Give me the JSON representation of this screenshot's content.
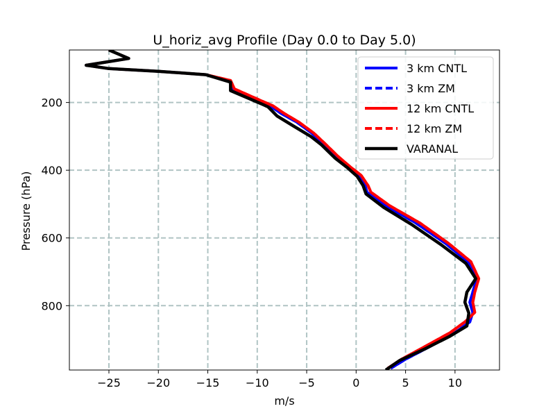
{
  "chart_data": {
    "type": "line",
    "title": "U_horiz_avg Profile (Day 0.0 to Day 5.0)",
    "xlabel": "m/s",
    "ylabel": "Pressure (hPa)",
    "xlim": [
      -29,
      14.5
    ],
    "ylim": [
      990,
      45
    ],
    "y_inverted": true,
    "grid": true,
    "grid_color": "#b0c4c4",
    "legend_position": "upper right",
    "xticks": [
      -25,
      -20,
      -15,
      -10,
      -5,
      0,
      5,
      10
    ],
    "xtick_labels": [
      "−25",
      "−20",
      "−15",
      "−10",
      "−5",
      "0",
      "5",
      "10"
    ],
    "yticks": [
      200,
      400,
      600,
      800
    ],
    "ytick_labels": [
      "200",
      "400",
      "600",
      "800"
    ],
    "series": [
      {
        "name": "3 km CNTL",
        "color": "#0000ff",
        "style": "solid",
        "width": 4,
        "points": [
          [
            -25,
            45
          ],
          [
            -23,
            70
          ],
          [
            -27.3,
            90
          ],
          [
            -25,
            100
          ],
          [
            -20,
            108
          ],
          [
            -15.2,
            118
          ],
          [
            -12.7,
            138
          ],
          [
            -12.5,
            162
          ],
          [
            -9.5,
            200
          ],
          [
            -8.7,
            210
          ],
          [
            -7.6,
            232
          ],
          [
            -6,
            258
          ],
          [
            -4.5,
            290
          ],
          [
            -3.4,
            320
          ],
          [
            -2,
            360
          ],
          [
            -0.8,
            390
          ],
          [
            0.3,
            415
          ],
          [
            0.9,
            445
          ],
          [
            1.1,
            465
          ],
          [
            3,
            505
          ],
          [
            6,
            555
          ],
          [
            9,
            615
          ],
          [
            11.3,
            670
          ],
          [
            12.2,
            720
          ],
          [
            11.8,
            760
          ],
          [
            11.5,
            790
          ],
          [
            11.8,
            820
          ],
          [
            11.5,
            848
          ],
          [
            10,
            880
          ],
          [
            7.5,
            920
          ],
          [
            5,
            958
          ],
          [
            3.5,
            985
          ]
        ]
      },
      {
        "name": "3 km ZM",
        "color": "#0000ff",
        "style": "dashed",
        "width": 4,
        "points": [
          [
            -25,
            45
          ],
          [
            -23,
            70
          ],
          [
            -27.3,
            90
          ],
          [
            -25,
            100
          ],
          [
            -20,
            108
          ],
          [
            -15.2,
            118
          ],
          [
            -12.7,
            138
          ],
          [
            -12.5,
            162
          ],
          [
            -9.5,
            200
          ],
          [
            -8.7,
            210
          ],
          [
            -7.6,
            232
          ],
          [
            -6,
            258
          ],
          [
            -4.5,
            290
          ],
          [
            -3.4,
            320
          ],
          [
            -2,
            360
          ],
          [
            -0.8,
            390
          ],
          [
            0.3,
            415
          ],
          [
            0.9,
            445
          ],
          [
            1.1,
            465
          ],
          [
            3,
            505
          ],
          [
            6,
            555
          ],
          [
            9,
            615
          ],
          [
            11.3,
            670
          ],
          [
            12.2,
            720
          ],
          [
            11.8,
            760
          ],
          [
            11.5,
            790
          ],
          [
            11.8,
            820
          ],
          [
            11.5,
            848
          ],
          [
            10,
            880
          ],
          [
            7.5,
            920
          ],
          [
            5,
            958
          ],
          [
            3.5,
            985
          ]
        ]
      },
      {
        "name": "12 km CNTL",
        "color": "#ff0000",
        "style": "solid",
        "width": 4,
        "points": [
          [
            -25,
            45
          ],
          [
            -23,
            70
          ],
          [
            -27.3,
            90
          ],
          [
            -25,
            100
          ],
          [
            -20,
            108
          ],
          [
            -15.2,
            118
          ],
          [
            -12.7,
            135
          ],
          [
            -12.3,
            160
          ],
          [
            -9.2,
            200
          ],
          [
            -8.4,
            210
          ],
          [
            -7.3,
            232
          ],
          [
            -5.8,
            258
          ],
          [
            -4.3,
            290
          ],
          [
            -3.2,
            320
          ],
          [
            -1.8,
            360
          ],
          [
            -0.6,
            390
          ],
          [
            0.5,
            415
          ],
          [
            1.2,
            445
          ],
          [
            1.5,
            465
          ],
          [
            3.4,
            505
          ],
          [
            6.4,
            555
          ],
          [
            9.3,
            615
          ],
          [
            11.6,
            670
          ],
          [
            12.4,
            720
          ],
          [
            12,
            760
          ],
          [
            11.8,
            790
          ],
          [
            12,
            820
          ],
          [
            11,
            848
          ],
          [
            9.5,
            880
          ],
          [
            7,
            920
          ],
          [
            4.6,
            958
          ],
          [
            3.2,
            985
          ]
        ]
      },
      {
        "name": "12 km ZM",
        "color": "#ff0000",
        "style": "dashed",
        "width": 4,
        "points": [
          [
            -25,
            45
          ],
          [
            -23,
            70
          ],
          [
            -27.3,
            90
          ],
          [
            -25,
            100
          ],
          [
            -20,
            108
          ],
          [
            -15.2,
            118
          ],
          [
            -12.7,
            135
          ],
          [
            -12.3,
            160
          ],
          [
            -9.2,
            200
          ],
          [
            -8.4,
            210
          ],
          [
            -7.3,
            232
          ],
          [
            -5.8,
            258
          ],
          [
            -4.3,
            290
          ],
          [
            -3.2,
            320
          ],
          [
            -1.8,
            360
          ],
          [
            -0.6,
            390
          ],
          [
            0.5,
            415
          ],
          [
            1.2,
            445
          ],
          [
            1.5,
            465
          ],
          [
            3.4,
            505
          ],
          [
            6.4,
            555
          ],
          [
            9.3,
            615
          ],
          [
            11.6,
            670
          ],
          [
            12.4,
            720
          ],
          [
            12,
            760
          ],
          [
            11.8,
            790
          ],
          [
            12,
            820
          ],
          [
            11,
            848
          ],
          [
            9.5,
            880
          ],
          [
            7,
            920
          ],
          [
            4.6,
            958
          ],
          [
            3.2,
            985
          ]
        ]
      },
      {
        "name": "VARANAL",
        "color": "#000000",
        "style": "solid",
        "width": 4.5,
        "points": [
          [
            -25,
            45
          ],
          [
            -23,
            70
          ],
          [
            -27.3,
            90
          ],
          [
            -25,
            100
          ],
          [
            -20,
            108
          ],
          [
            -15.2,
            118
          ],
          [
            -12.7,
            140
          ],
          [
            -12.7,
            165
          ],
          [
            -9.5,
            205
          ],
          [
            -8.9,
            213
          ],
          [
            -8,
            240
          ],
          [
            -6.3,
            270
          ],
          [
            -4.6,
            300
          ],
          [
            -3.5,
            325
          ],
          [
            -2.1,
            365
          ],
          [
            -0.9,
            392
          ],
          [
            0.1,
            418
          ],
          [
            0.7,
            445
          ],
          [
            1,
            470
          ],
          [
            2.8,
            510
          ],
          [
            5.6,
            560
          ],
          [
            8.6,
            620
          ],
          [
            11.1,
            675
          ],
          [
            12.1,
            720
          ],
          [
            11.2,
            760
          ],
          [
            11,
            790
          ],
          [
            11.4,
            822
          ],
          [
            11.2,
            860
          ],
          [
            9.5,
            890
          ],
          [
            7,
            927
          ],
          [
            4.4,
            962
          ],
          [
            3,
            990
          ]
        ]
      }
    ]
  }
}
